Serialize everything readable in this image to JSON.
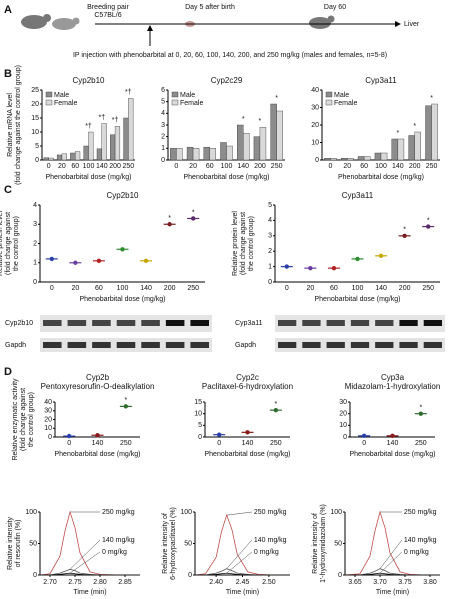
{
  "panel_labels": [
    "A",
    "B",
    "C",
    "D"
  ],
  "diagram": {
    "breeding": [
      "Breeding pair",
      "C57BL/6"
    ],
    "day5": "Day 5 after birth",
    "day60": "Day 60",
    "liver": "Liver",
    "injection": "IP injection with phenobarbital at 0, 20, 60, 100, 140, 200, and 250 mg/kg (males and females, n=5-8)"
  },
  "blots": [
    {
      "labels": [
        "Cyp2b10",
        "Gapdh"
      ]
    },
    {
      "labels": [
        "Cyp3a11",
        "Gapdh"
      ]
    }
  ],
  "chart_data": [
    {
      "type": "bar",
      "title": "Cyp2b10",
      "ylabel": [
        "Relative mRNA level",
        "(fold change against the control group)"
      ],
      "xlabel": "Phenobarbital dose (mg/kg)",
      "categories": [
        0,
        20,
        60,
        100,
        140,
        200,
        250
      ],
      "series": [
        {
          "name": "Male",
          "color": "#8c8c8c",
          "values": [
            0.8,
            1.8,
            2.5,
            5,
            4,
            9,
            15
          ]
        },
        {
          "name": "Female",
          "color": "#d9d9d9",
          "values": [
            0.7,
            2.2,
            3,
            10,
            13,
            12,
            22
          ]
        }
      ],
      "ylim": [
        0,
        25
      ],
      "yticks": [
        0,
        5,
        10,
        15,
        20,
        25
      ],
      "legend": "upper left",
      "annotations": [
        {
          "text": "*†",
          "category": 3
        },
        {
          "text": "*†",
          "category": 4
        },
        {
          "text": "*†",
          "category": 5
        },
        {
          "text": "*†",
          "category": 6
        }
      ]
    },
    {
      "type": "bar",
      "title": "Cyp2c29",
      "xlabel": "Phenobarbital dose (mg/kg)",
      "categories": [
        0,
        20,
        60,
        100,
        140,
        200,
        250
      ],
      "series": [
        {
          "name": "Male",
          "color": "#8c8c8c",
          "values": [
            1,
            1.1,
            1.1,
            1.5,
            3,
            2,
            4.8
          ]
        },
        {
          "name": "Female",
          "color": "#d9d9d9",
          "values": [
            1,
            1,
            1,
            1.2,
            2.3,
            2.8,
            4.2
          ]
        }
      ],
      "ylim": [
        0,
        6
      ],
      "yticks": [
        0,
        1,
        2,
        3,
        4,
        5,
        6
      ],
      "legend": "upper left",
      "annotations": [
        {
          "text": "*",
          "category": 4
        },
        {
          "text": "*",
          "category": 5
        },
        {
          "text": "*",
          "category": 6
        }
      ]
    },
    {
      "type": "bar",
      "title": "Cyp3a11",
      "xlabel": "Phenobarbital dose (mg/kg)",
      "categories": [
        0,
        20,
        60,
        100,
        140,
        200,
        250
      ],
      "series": [
        {
          "name": "Male",
          "color": "#8c8c8c",
          "values": [
            1,
            1,
            2,
            4,
            12,
            14,
            31
          ]
        },
        {
          "name": "Female",
          "color": "#d9d9d9",
          "values": [
            1,
            1,
            2,
            4,
            12,
            16,
            32
          ]
        }
      ],
      "ylim": [
        0,
        40
      ],
      "yticks": [
        0,
        10,
        20,
        30,
        40
      ],
      "legend": "upper left",
      "annotations": [
        {
          "text": "*",
          "category": 4
        },
        {
          "text": "*",
          "category": 5
        },
        {
          "text": "*",
          "category": 6
        }
      ]
    },
    {
      "type": "dot",
      "title": "Cyp2b10",
      "ylabel": [
        "Relative protein level",
        "(fold change against",
        "the control group)"
      ],
      "xlabel": "Phenobarbital dose (mg/kg)",
      "categories": [
        0,
        20,
        60,
        100,
        140,
        200,
        250
      ],
      "values": [
        1.2,
        1,
        1.1,
        1.7,
        1.1,
        3,
        3.3
      ],
      "colors": [
        "#2b3fa8",
        "#6a3fa0",
        "#b22222",
        "#2e8b2e",
        "#c8a800",
        "#7a1f1f",
        "#5a2a6a"
      ],
      "ylim": [
        0,
        4
      ],
      "yticks": [
        0,
        1,
        2,
        3,
        4
      ],
      "annotations": [
        {
          "text": "*",
          "category": 5
        },
        {
          "text": "*",
          "category": 6
        }
      ]
    },
    {
      "type": "dot",
      "title": "Cyp3a11",
      "ylabel": [
        "Relative protein level",
        "(fold change against",
        "the control group)"
      ],
      "xlabel": "Phenobarbital dose (mg/kg)",
      "categories": [
        0,
        20,
        60,
        100,
        140,
        200,
        250
      ],
      "values": [
        1,
        0.9,
        0.9,
        1.5,
        1.7,
        3,
        3.6
      ],
      "colors": [
        "#2b3fa8",
        "#6a3fa0",
        "#b22222",
        "#2e8b2e",
        "#c8a800",
        "#7a1f1f",
        "#5a2a6a"
      ],
      "ylim": [
        0,
        5
      ],
      "yticks": [
        0,
        1,
        2,
        3,
        4,
        5
      ],
      "annotations": [
        {
          "text": "*",
          "category": 5
        },
        {
          "text": "*",
          "category": 6
        }
      ]
    },
    {
      "type": "dot",
      "title": "Cyp2b",
      "subtitle": "Pentoxyresorufin-O-dealkylation",
      "ylabel": [
        "Relative enzymatic activity",
        "(fold change against",
        "the control group)"
      ],
      "xlabel": "Phenobarbital dose (mg/kg)",
      "categories": [
        0,
        140,
        250
      ],
      "values": [
        1,
        2,
        35
      ],
      "colors": [
        "#2b3fa8",
        "#8b1a1a",
        "#2e6b2e"
      ],
      "ylim": [
        0,
        40
      ],
      "yticks": [
        0,
        10,
        20,
        30,
        40
      ],
      "annotations": [
        {
          "text": "*",
          "category": 2
        }
      ]
    },
    {
      "type": "dot",
      "title": "Cyp2c",
      "subtitle": "Paclitaxel-6-hydroxylation",
      "xlabel": "Phenobarbital dose (mg/kg)",
      "categories": [
        0,
        140,
        250
      ],
      "values": [
        1,
        2,
        11.5
      ],
      "colors": [
        "#2b3fa8",
        "#8b1a1a",
        "#2e6b2e"
      ],
      "ylim": [
        0,
        15
      ],
      "yticks": [
        0,
        5,
        10,
        15
      ],
      "annotations": [
        {
          "text": "*",
          "category": 2
        }
      ]
    },
    {
      "type": "dot",
      "title": "Cyp3a",
      "subtitle": "Midazolam-1-hydroxylation",
      "xlabel": "Phenobarbital dose (mg/kg)",
      "categories": [
        0,
        140,
        250
      ],
      "values": [
        1,
        1,
        20
      ],
      "colors": [
        "#2b3fa8",
        "#8b1a1a",
        "#2e6b2e"
      ],
      "ylim": [
        0,
        30
      ],
      "yticks": [
        0,
        10,
        20,
        30
      ],
      "annotations": [
        {
          "text": "*",
          "category": 2
        }
      ]
    },
    {
      "type": "line",
      "ylabel": [
        "Relative intensity",
        "of resorufin (%)"
      ],
      "xlabel": "Time (min)",
      "x": [
        2.68,
        2.7,
        2.72,
        2.73,
        2.74,
        2.75,
        2.76,
        2.78,
        2.8,
        2.84,
        2.88
      ],
      "xlim": [
        2.68,
        2.88
      ],
      "xticks": [
        {
          "value": 2.7,
          "label": "2.70"
        },
        2.75,
        {
          "value": 2.8,
          "label": "2.80"
        },
        2.85
      ],
      "ylim": [
        0,
        100
      ],
      "yticks": [
        0,
        50,
        100
      ],
      "series": [
        {
          "name": "250 mg/kg",
          "color": "#c0504d",
          "values": [
            0,
            2,
            30,
            70,
            100,
            75,
            35,
            5,
            1,
            0,
            0
          ]
        },
        {
          "name": "140 mg/kg",
          "color": "#555555",
          "values": [
            0,
            0,
            3,
            6,
            9,
            7,
            3,
            1,
            0,
            0,
            0
          ]
        },
        {
          "name": "0 mg/kg",
          "color": "#000000",
          "values": [
            0,
            0,
            1,
            2,
            3,
            2,
            1,
            0,
            0,
            0,
            0
          ]
        }
      ]
    },
    {
      "type": "line",
      "ylabel": [
        "Relative intensity of",
        "6-hydroxypaclitaxel (%)"
      ],
      "xlabel": "Time (min)",
      "x": [
        2.36,
        2.38,
        2.4,
        2.41,
        2.42,
        2.43,
        2.44,
        2.46,
        2.48,
        2.51,
        2.54
      ],
      "xlim": [
        2.36,
        2.54
      ],
      "xticks": [
        {
          "value": 2.4,
          "label": "2.40"
        },
        2.45,
        {
          "value": 2.5,
          "label": "2.50"
        }
      ],
      "ylim": [
        0,
        100
      ],
      "yticks": [
        0,
        50,
        100
      ],
      "series": [
        {
          "name": "250 mg/kg",
          "color": "#c0504d",
          "values": [
            0,
            2,
            28,
            68,
            95,
            72,
            33,
            5,
            1,
            0,
            0
          ]
        },
        {
          "name": "140 mg/kg",
          "color": "#555555",
          "values": [
            0,
            0,
            3,
            6,
            10,
            7,
            3,
            1,
            0,
            0,
            0
          ]
        },
        {
          "name": "0 mg/kg",
          "color": "#000000",
          "values": [
            0,
            0,
            1,
            2,
            3,
            2,
            1,
            0,
            0,
            0,
            0
          ]
        }
      ]
    },
    {
      "type": "line",
      "ylabel": [
        "Relative intensity of",
        "1'-hydroxymidazolam (%)"
      ],
      "xlabel": "Time (min)",
      "x": [
        3.63,
        3.66,
        3.68,
        3.69,
        3.7,
        3.71,
        3.72,
        3.74,
        3.76,
        3.79,
        3.82
      ],
      "xlim": [
        3.63,
        3.82
      ],
      "xticks": [
        3.65,
        {
          "value": 3.7,
          "label": "3.70"
        },
        3.75,
        {
          "value": 3.8,
          "label": "3.80"
        }
      ],
      "ylim": [
        0,
        100
      ],
      "yticks": [
        0,
        50,
        100
      ],
      "series": [
        {
          "name": "250 mg/kg",
          "color": "#c0504d",
          "values": [
            0,
            2,
            30,
            70,
            100,
            75,
            35,
            5,
            1,
            0,
            0
          ]
        },
        {
          "name": "140 mg/kg",
          "color": "#555555",
          "values": [
            0,
            0,
            3,
            6,
            10,
            7,
            3,
            1,
            0,
            0,
            0
          ]
        },
        {
          "name": "0 mg/kg",
          "color": "#000000",
          "values": [
            0,
            0,
            1,
            2,
            3,
            2,
            1,
            0,
            0,
            0,
            0
          ]
        }
      ]
    }
  ]
}
